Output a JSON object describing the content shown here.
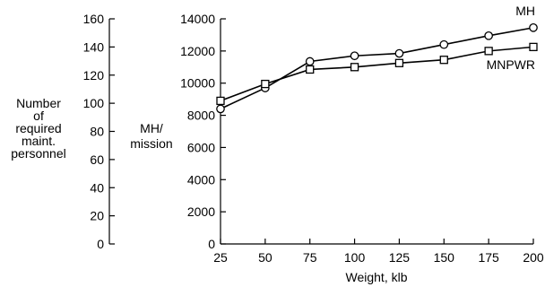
{
  "chart_data": {
    "type": "line",
    "xlabel": "Weight, klb",
    "x": [
      25,
      50,
      75,
      100,
      125,
      150,
      175,
      200
    ],
    "xlim": [
      25,
      200
    ],
    "y_right_label": "MH/ mission",
    "y_right_label_lines": [
      "MH/",
      "mission"
    ],
    "y_right_ticks": [
      0,
      2000,
      4000,
      6000,
      8000,
      10000,
      12000,
      14000
    ],
    "y_right_lim": [
      0,
      14000
    ],
    "y_left_label": "Number of required maint. personnel",
    "y_left_label_lines": [
      "Number",
      "of",
      "required",
      "maint.",
      "personnel"
    ],
    "y_left_ticks": [
      0,
      20,
      40,
      60,
      80,
      100,
      120,
      140,
      160
    ],
    "y_left_lim": [
      0,
      160
    ],
    "grid": false,
    "legend": "inline labels at right end of lines",
    "series": [
      {
        "name": "MH",
        "axis": "right",
        "marker": "circle",
        "values": [
          8400,
          9700,
          11350,
          11700,
          11850,
          12400,
          12950,
          13450
        ]
      },
      {
        "name": "MNPWR",
        "axis": "right",
        "marker": "square",
        "values": [
          8900,
          9950,
          10850,
          11000,
          11250,
          11450,
          12000,
          12250
        ]
      }
    ]
  }
}
